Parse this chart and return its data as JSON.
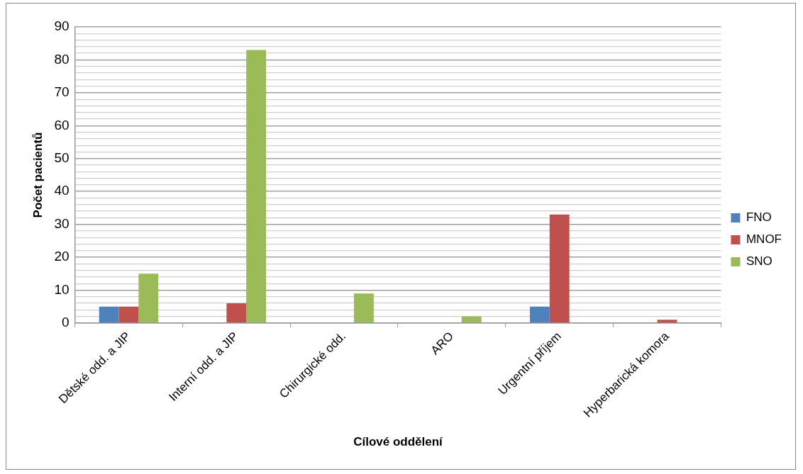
{
  "chart_data": {
    "type": "bar",
    "xlabel": "Cílové oddělení",
    "ylabel": "Počet pacientů",
    "categories": [
      "Dětské odd. a JIP",
      "Interní odd. a JIP",
      "Chirurgické odd.",
      "ARO",
      "Urgentní příjem",
      "Hyperbarická komora"
    ],
    "series": [
      {
        "name": "FNO",
        "color": "#4f81bd",
        "values": [
          5,
          null,
          null,
          null,
          5,
          null
        ]
      },
      {
        "name": "MNOF",
        "color": "#c0504d",
        "values": [
          5,
          6,
          null,
          null,
          33,
          1
        ]
      },
      {
        "name": "SNO",
        "color": "#9bbb59",
        "values": [
          15,
          83,
          9,
          2,
          null,
          null
        ]
      }
    ],
    "ylim": [
      0,
      90
    ],
    "yticks": [
      0,
      {
        "value": 2,
        "label": null
      },
      {
        "value": 4,
        "label": null
      },
      {
        "value": 6,
        "label": null
      },
      {
        "value": 8,
        "label": null
      },
      10,
      {
        "value": 12,
        "label": null
      },
      {
        "value": 14,
        "label": null
      },
      {
        "value": 16,
        "label": null
      },
      {
        "value": 18,
        "label": null
      },
      20,
      {
        "value": 22,
        "label": null
      },
      {
        "value": 24,
        "label": null
      },
      {
        "value": 26,
        "label": null
      },
      {
        "value": 28,
        "label": null
      },
      30,
      {
        "value": 32,
        "label": null
      },
      {
        "value": 34,
        "label": null
      },
      {
        "value": 36,
        "label": null
      },
      {
        "value": 38,
        "label": null
      },
      40,
      {
        "value": 42,
        "label": null
      },
      {
        "value": 44,
        "label": null
      },
      {
        "value": 46,
        "label": null
      },
      {
        "value": 48,
        "label": null
      },
      50,
      {
        "value": 52,
        "label": null
      },
      {
        "value": 54,
        "label": null
      },
      {
        "value": 56,
        "label": null
      },
      {
        "value": 58,
        "label": null
      },
      60,
      {
        "value": 62,
        "label": null
      },
      {
        "value": 64,
        "label": null
      },
      {
        "value": 66,
        "label": null
      },
      {
        "value": 68,
        "label": null
      },
      70,
      {
        "value": 72,
        "label": null
      },
      {
        "value": 74,
        "label": null
      },
      {
        "value": 76,
        "label": null
      },
      {
        "value": 78,
        "label": null
      },
      80,
      {
        "value": 82,
        "label": null
      },
      {
        "value": 84,
        "label": null
      },
      {
        "value": 86,
        "label": null
      },
      {
        "value": 88,
        "label": null
      },
      90
    ],
    "grid": true,
    "legend": "right"
  }
}
